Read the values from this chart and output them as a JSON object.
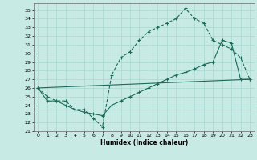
{
  "xlabel": "Humidex (Indice chaleur)",
  "background_color": "#c8eae4",
  "line_color": "#1a6b5a",
  "grid_color": "#a8d8d0",
  "xlim": [
    -0.5,
    23.5
  ],
  "ylim": [
    21,
    35.8
  ],
  "yticks": [
    21,
    22,
    23,
    24,
    25,
    26,
    27,
    28,
    29,
    30,
    31,
    32,
    33,
    34,
    35
  ],
  "xticks": [
    0,
    1,
    2,
    3,
    4,
    5,
    6,
    7,
    8,
    9,
    10,
    11,
    12,
    13,
    14,
    15,
    16,
    17,
    18,
    19,
    20,
    21,
    22,
    23
  ],
  "line1_x": [
    0,
    1,
    2,
    3,
    4,
    5,
    6,
    7,
    8,
    9,
    10,
    11,
    12,
    13,
    14,
    15,
    16,
    17,
    18,
    19,
    20,
    21,
    22,
    23
  ],
  "line1_y": [
    26.0,
    25.0,
    24.5,
    24.5,
    23.5,
    23.5,
    22.5,
    21.5,
    27.5,
    29.5,
    30.2,
    31.5,
    32.5,
    33.0,
    33.5,
    34.0,
    35.2,
    34.0,
    33.5,
    31.5,
    31.0,
    30.5,
    29.5,
    27.0
  ],
  "line2_x": [
    0,
    23
  ],
  "line2_y": [
    26.0,
    27.0
  ],
  "line3_x": [
    0,
    1,
    2,
    3,
    4,
    5,
    6,
    7,
    8,
    9,
    10,
    11,
    12,
    13,
    14,
    15,
    16,
    17,
    18,
    19,
    20,
    21,
    22,
    23
  ],
  "line3_y": [
    26.0,
    24.5,
    24.5,
    24.0,
    23.5,
    23.2,
    23.0,
    22.8,
    24.0,
    24.5,
    25.0,
    25.5,
    26.0,
    26.5,
    27.0,
    27.5,
    27.8,
    28.2,
    28.7,
    29.0,
    31.5,
    31.2,
    27.0,
    27.0
  ]
}
